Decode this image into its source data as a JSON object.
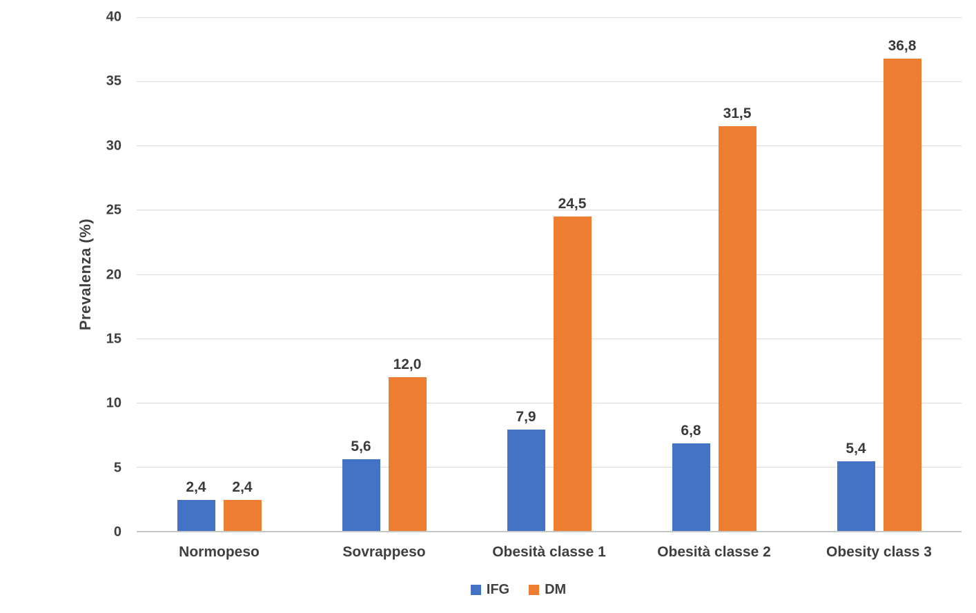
{
  "chart_data": {
    "type": "bar",
    "title": "",
    "xlabel": "",
    "ylabel": "Prevalenza (%)",
    "ylim": [
      0,
      40
    ],
    "ytick_step": 5,
    "yticks": [
      0,
      5,
      10,
      15,
      20,
      25,
      30,
      35,
      40
    ],
    "grid": true,
    "legend_position": "bottom",
    "categories": [
      "Normopeso",
      "Sovrappeso",
      "Obesità classe 1",
      "Obesità classe 2",
      "Obesity class 3"
    ],
    "series": [
      {
        "name": "IFG",
        "color": "#4472C4",
        "values": [
          2.4,
          5.6,
          7.9,
          6.8,
          5.4
        ],
        "value_labels": [
          "2,4",
          "5,6",
          "7,9",
          "6,8",
          "5,4"
        ]
      },
      {
        "name": "DM",
        "color": "#ED7D31",
        "values": [
          2.4,
          12.0,
          24.5,
          31.5,
          36.8
        ],
        "value_labels": [
          "2,4",
          "12,0",
          "24,5",
          "31,5",
          "36,8"
        ]
      }
    ]
  },
  "colors": {
    "text": "#3F3F3F",
    "gridline": "#D9D9D9",
    "baseline": "#C6C6C6",
    "background": "#FFFFFF"
  }
}
